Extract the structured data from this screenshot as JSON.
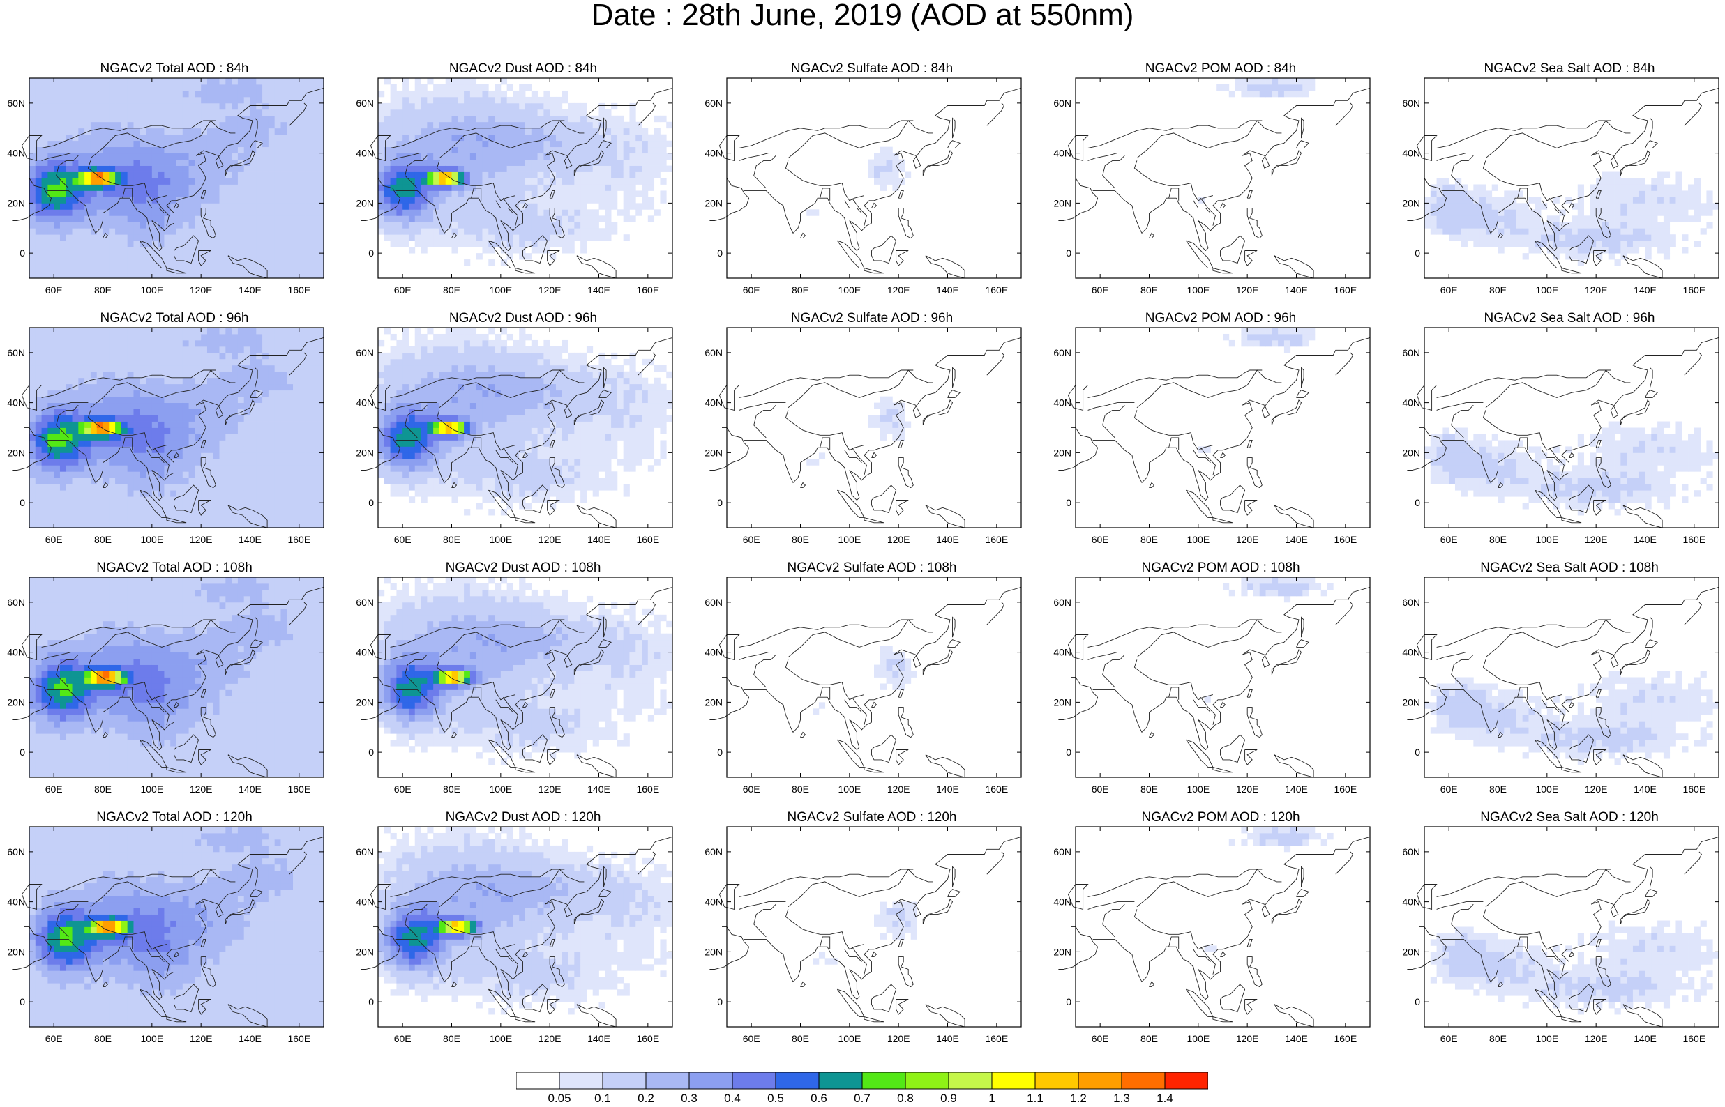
{
  "title": "Date : 28th June, 2019 (AOD at 550nm)",
  "colorbar": {
    "colors": [
      "#ffffff",
      "#dfe5fb",
      "#c5d0f8",
      "#a9b8f4",
      "#8c9ff0",
      "#6d7ceb",
      "#2f67e8",
      "#0e9593",
      "#53e816",
      "#8ff216",
      "#c5f74a",
      "#ffff00",
      "#ffc800",
      "#ff9e00",
      "#ff6e00",
      "#ff2400"
    ],
    "labels": [
      "0.05",
      "0.1",
      "0.2",
      "0.3",
      "0.4",
      "0.5",
      "0.6",
      "0.7",
      "0.8",
      "0.9",
      "1",
      "1.1",
      "1.2",
      "1.3",
      "1.4"
    ]
  },
  "axes": {
    "lat_ticks": [
      "60N",
      "40N",
      "20N",
      "0"
    ],
    "lon_ticks": [
      "60E",
      "80E",
      "100E",
      "120E",
      "140E",
      "160E"
    ]
  },
  "panels": [
    {
      "title": "NGACv2 Total AOD : 84h",
      "species": "total",
      "hour": 84
    },
    {
      "title": "NGACv2 Dust AOD : 84h",
      "species": "dust",
      "hour": 84
    },
    {
      "title": "NGACv2 Sulfate AOD : 84h",
      "species": "sulfate",
      "hour": 84
    },
    {
      "title": "NGACv2 POM AOD : 84h",
      "species": "pom",
      "hour": 84
    },
    {
      "title": "NGACv2 Sea Salt AOD : 84h",
      "species": "seasalt",
      "hour": 84
    },
    {
      "title": "NGACv2 Total AOD : 96h",
      "species": "total",
      "hour": 96
    },
    {
      "title": "NGACv2 Dust AOD : 96h",
      "species": "dust",
      "hour": 96
    },
    {
      "title": "NGACv2 Sulfate AOD : 96h",
      "species": "sulfate",
      "hour": 96
    },
    {
      "title": "NGACv2 POM AOD : 96h",
      "species": "pom",
      "hour": 96
    },
    {
      "title": "NGACv2 Sea Salt AOD : 96h",
      "species": "seasalt",
      "hour": 96
    },
    {
      "title": "NGACv2 Total AOD : 108h",
      "species": "total",
      "hour": 108
    },
    {
      "title": "NGACv2 Dust AOD : 108h",
      "species": "dust",
      "hour": 108
    },
    {
      "title": "NGACv2 Sulfate AOD : 108h",
      "species": "sulfate",
      "hour": 108
    },
    {
      "title": "NGACv2 POM AOD : 108h",
      "species": "pom",
      "hour": 108
    },
    {
      "title": "NGACv2 Sea Salt AOD : 108h",
      "species": "seasalt",
      "hour": 108
    },
    {
      "title": "NGACv2 Total AOD : 120h",
      "species": "total",
      "hour": 120
    },
    {
      "title": "NGACv2 Dust AOD : 120h",
      "species": "dust",
      "hour": 120
    },
    {
      "title": "NGACv2 Sulfate AOD : 120h",
      "species": "sulfate",
      "hour": 120
    },
    {
      "title": "NGACv2 POM AOD : 120h",
      "species": "pom",
      "hour": 120
    },
    {
      "title": "NGACv2 Sea Salt  AOD : 120h",
      "species": "seasalt",
      "hour": 120
    }
  ]
}
